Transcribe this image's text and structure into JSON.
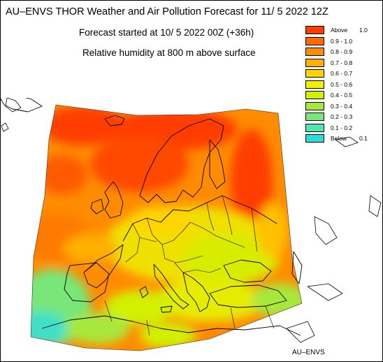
{
  "title": "AU–ENVS THOR Weather and Air Pollution Forecast for 11/ 5 2022  12Z",
  "forecast_start": "Forecast started at 10/ 5 2022  00Z (+36h)",
  "variable": "Relative humidity at 800 m above surface",
  "footer": "AU–ENVS",
  "legend": [
    {
      "label": "Above",
      "value": "1.0",
      "color": "#ff3c00"
    },
    {
      "label": "0.9  -  1.0",
      "color": "#ff6a00"
    },
    {
      "label": "0.8  -  0.9",
      "color": "#ff8c00"
    },
    {
      "label": "0.7  -  0.8",
      "color": "#ffb000"
    },
    {
      "label": "0.6  -  0.7",
      "color": "#ffd400"
    },
    {
      "label": "0.5  -  0.6",
      "color": "#f0f000"
    },
    {
      "label": "0.4  -  0.5",
      "color": "#d2f000"
    },
    {
      "label": "0.3  -  0.4",
      "color": "#a8e83c"
    },
    {
      "label": "0.2  -  0.3",
      "color": "#78e678"
    },
    {
      "label": "0.1  -  0.2",
      "color": "#50e6b4"
    },
    {
      "label": "Below",
      "value": "0.1",
      "color": "#28dcdc"
    }
  ]
}
